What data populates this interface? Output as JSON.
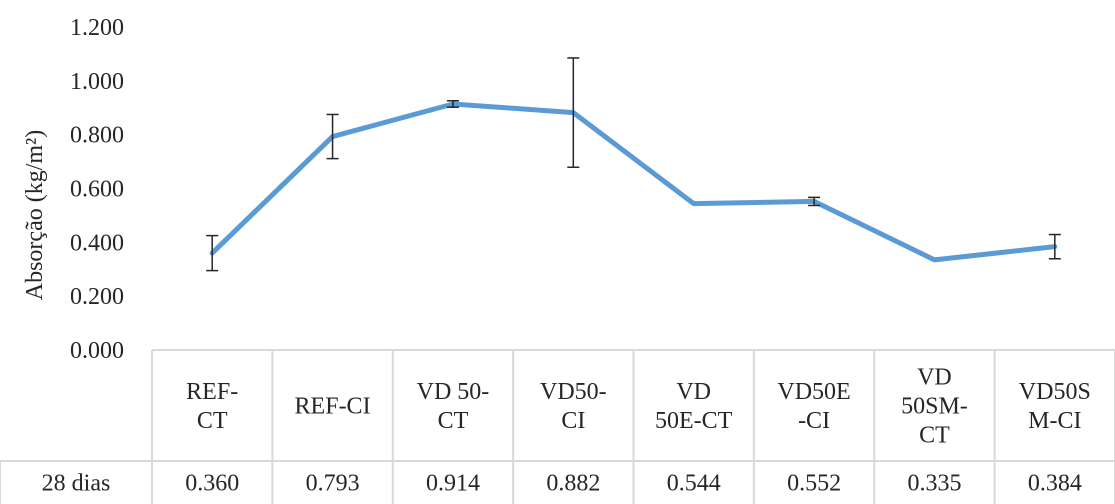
{
  "chart_data": {
    "type": "line",
    "ylabel": "Absorção (kg/m²)",
    "ylim": [
      0,
      1.2
    ],
    "ytick_labels": [
      "0.000",
      "0.200",
      "0.400",
      "0.600",
      "0.800",
      "1.000",
      "1.200"
    ],
    "yticks": [
      0,
      0.2,
      0.4,
      0.6,
      0.8,
      1.0,
      1.2
    ],
    "grid": false,
    "categories": [
      [
        "REF-",
        "CT"
      ],
      [
        "REF-CI"
      ],
      [
        "VD 50-",
        "CT"
      ],
      [
        "VD50-",
        "CI"
      ],
      [
        "VD",
        "50E-CT"
      ],
      [
        "VD50E",
        "-CI"
      ],
      [
        "VD",
        "50SM-",
        "CT"
      ],
      [
        "VD50S",
        "M-CI"
      ]
    ],
    "series": [
      {
        "name": "28 dias",
        "color": "#5b9bd5",
        "values": [
          0.36,
          0.793,
          0.914,
          0.882,
          0.544,
          0.552,
          0.335,
          0.384
        ],
        "value_labels": [
          "0.360",
          "0.793",
          "0.914",
          "0.882",
          "0.544",
          "0.552",
          "0.335",
          "0.384"
        ],
        "error": [
          0.065,
          0.082,
          0.012,
          0.203,
          0.0,
          0.015,
          0.0,
          0.045
        ]
      }
    ],
    "data_table": true
  }
}
